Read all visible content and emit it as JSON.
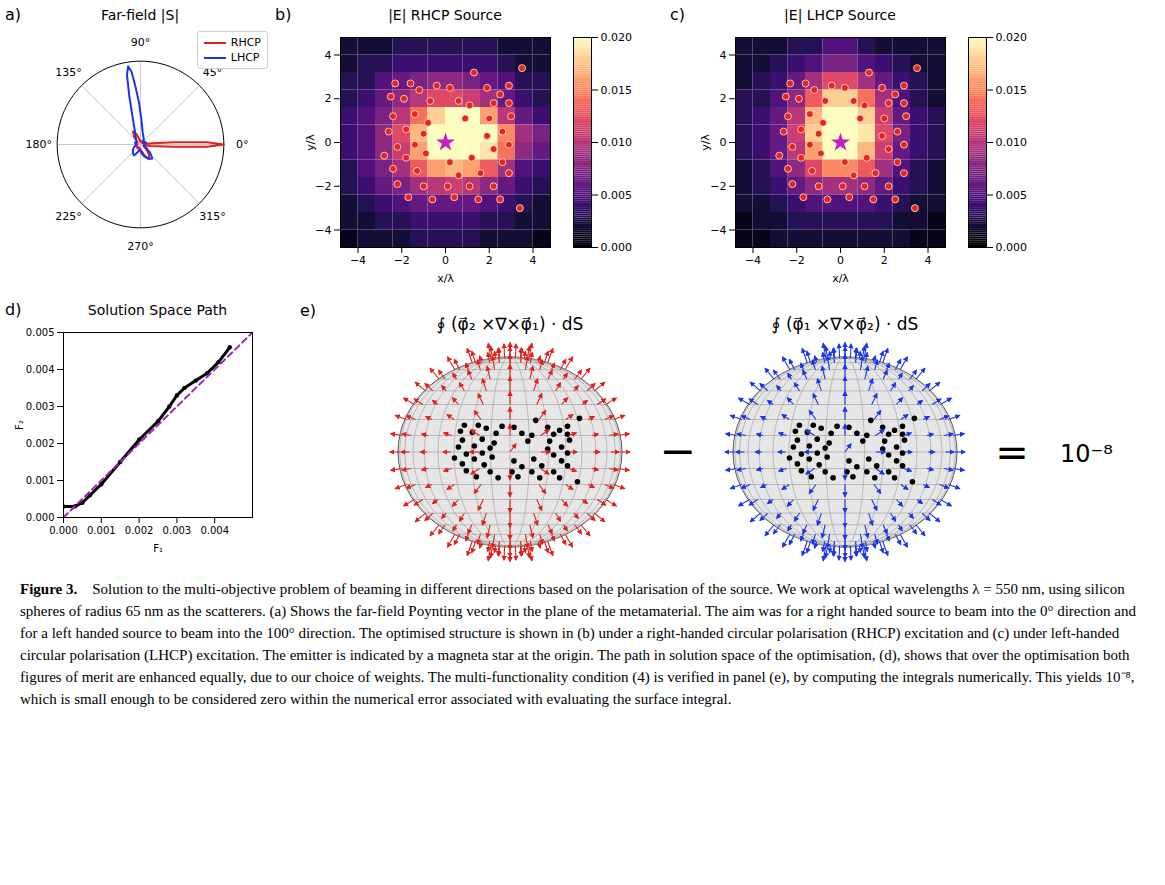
{
  "chart_data": [
    {
      "type": "polar",
      "panel_label": "a)",
      "title": "Far-field |S|",
      "x": [
        0,
        2,
        4,
        6,
        8,
        12,
        20,
        30,
        40,
        50,
        60,
        70,
        80,
        88,
        92,
        95,
        97,
        99,
        101,
        103,
        106,
        110,
        115,
        120,
        130,
        140,
        150,
        160,
        170,
        180,
        190,
        200,
        210,
        220,
        230,
        240,
        250,
        260,
        270,
        280,
        290,
        300,
        310,
        320,
        330,
        340,
        348,
        352,
        354,
        356,
        358
      ],
      "series": [
        {
          "name": "RHCP",
          "color": "#e0201b",
          "values": [
            1.0,
            0.8,
            0.4,
            0.15,
            0.06,
            0.04,
            0.05,
            0.03,
            0.05,
            0.06,
            0.04,
            0.03,
            0.04,
            0.05,
            0.05,
            0.04,
            0.04,
            0.04,
            0.05,
            0.06,
            0.08,
            0.12,
            0.16,
            0.18,
            0.12,
            0.06,
            0.04,
            0.05,
            0.06,
            0.05,
            0.04,
            0.06,
            0.05,
            0.04,
            0.06,
            0.05,
            0.04,
            0.05,
            0.06,
            0.08,
            0.14,
            0.2,
            0.16,
            0.09,
            0.05,
            0.04,
            0.05,
            0.12,
            0.2,
            0.4,
            0.8
          ]
        },
        {
          "name": "LHCP",
          "color": "#1a35e8",
          "values": [
            0.04,
            0.05,
            0.05,
            0.04,
            0.04,
            0.05,
            0.07,
            0.06,
            0.04,
            0.05,
            0.08,
            0.1,
            0.15,
            0.3,
            0.5,
            0.7,
            0.88,
            0.95,
            0.85,
            0.6,
            0.35,
            0.22,
            0.15,
            0.12,
            0.08,
            0.06,
            0.05,
            0.07,
            0.06,
            0.05,
            0.06,
            0.08,
            0.1,
            0.12,
            0.14,
            0.15,
            0.1,
            0.06,
            0.08,
            0.12,
            0.16,
            0.2,
            0.22,
            0.15,
            0.08,
            0.05,
            0.04,
            0.04,
            0.04,
            0.04,
            0.04
          ]
        }
      ],
      "xticks": [
        {
          "value": 0,
          "label": "0°"
        },
        {
          "value": 45,
          "label": "45°"
        },
        {
          "value": 90,
          "label": "90°"
        },
        {
          "value": 135,
          "label": "135°"
        },
        {
          "value": 180,
          "label": "180°"
        },
        {
          "value": 225,
          "label": "225°"
        },
        {
          "value": 270,
          "label": "270°"
        },
        {
          "value": 315,
          "label": "315°"
        }
      ],
      "ylim": [
        0,
        1
      ],
      "tick_labels": "x",
      "grid": true,
      "legend": "upper right"
    },
    {
      "type": "heatmap",
      "panel_label": "b)",
      "title": "|E| RHCP Source",
      "x_label": "x/λ",
      "y_label": "y/λ",
      "xlim": [
        -4.8,
        4.8
      ],
      "ylim": [
        -4.8,
        4.8
      ],
      "xticks": [
        -4,
        -2,
        0,
        2,
        4
      ],
      "yticks": [
        -4,
        -2,
        0,
        2,
        4
      ],
      "cells": {
        "x": [
          -4.4,
          -3.6,
          -2.8,
          -2.0,
          -1.2,
          -0.4,
          0.4,
          1.2,
          2.0,
          2.8,
          3.6,
          4.4
        ],
        "y": [
          4.4,
          3.6,
          2.8,
          2.0,
          1.2,
          0.4,
          -0.4,
          -1.2,
          -2.0,
          -2.8,
          -3.6,
          -4.4
        ],
        "values": [
          [
            0.002,
            0.002,
            0.002,
            0.003,
            0.003,
            0.003,
            0.003,
            0.003,
            0.003,
            0.002,
            0.002,
            0.002
          ],
          [
            0.002,
            0.003,
            0.003,
            0.004,
            0.004,
            0.004,
            0.004,
            0.004,
            0.004,
            0.003,
            0.002,
            0.002
          ],
          [
            0.003,
            0.003,
            0.005,
            0.006,
            0.007,
            0.008,
            0.008,
            0.007,
            0.006,
            0.005,
            0.003,
            0.003
          ],
          [
            0.003,
            0.004,
            0.006,
            0.008,
            0.01,
            0.012,
            0.012,
            0.011,
            0.009,
            0.006,
            0.004,
            0.003
          ],
          [
            0.004,
            0.005,
            0.007,
            0.01,
            0.014,
            0.018,
            0.02,
            0.02,
            0.016,
            0.01,
            0.006,
            0.004
          ],
          [
            0.004,
            0.005,
            0.008,
            0.012,
            0.017,
            0.02,
            0.02,
            0.02,
            0.02,
            0.015,
            0.009,
            0.007
          ],
          [
            0.004,
            0.005,
            0.008,
            0.011,
            0.016,
            0.02,
            0.02,
            0.02,
            0.019,
            0.014,
            0.008,
            0.006
          ],
          [
            0.003,
            0.005,
            0.007,
            0.009,
            0.013,
            0.016,
            0.017,
            0.016,
            0.013,
            0.009,
            0.005,
            0.004
          ],
          [
            0.003,
            0.004,
            0.006,
            0.007,
            0.009,
            0.01,
            0.011,
            0.01,
            0.008,
            0.006,
            0.004,
            0.003
          ],
          [
            0.002,
            0.003,
            0.004,
            0.005,
            0.006,
            0.006,
            0.006,
            0.006,
            0.005,
            0.004,
            0.003,
            0.002
          ],
          [
            0.002,
            0.002,
            0.003,
            0.003,
            0.004,
            0.004,
            0.004,
            0.004,
            0.003,
            0.003,
            0.002,
            0.002
          ],
          [
            0.001,
            0.002,
            0.002,
            0.002,
            0.003,
            0.003,
            0.003,
            0.003,
            0.002,
            0.002,
            0.002,
            0.001
          ]
        ]
      },
      "color": "magma",
      "color_range": [
        0,
        0.02
      ],
      "color_ticks": [
        {
          "value": 0,
          "label": "0.000"
        },
        {
          "value": 0.005,
          "label": "0.005"
        },
        {
          "value": 0.01,
          "label": "0.010"
        },
        {
          "value": 0.015,
          "label": "0.015"
        },
        {
          "value": 0.02,
          "label": "0.020"
        }
      ],
      "points": {
        "color": "#e8241c",
        "x": [
          -2.3,
          -1.6,
          -1.2,
          -0.4,
          0.2,
          1.3,
          1.9,
          2.5,
          2.9,
          3.5,
          -2.5,
          -1.9,
          -0.7,
          0.6,
          1.1,
          2.2,
          2.9,
          -2.4,
          -1.4,
          -0.8,
          0.9,
          2.0,
          3.0,
          -2.6,
          -1.8,
          -1.0,
          2.6,
          -2.2,
          -1.4,
          2.2,
          2.9,
          -2.8,
          -1.8,
          -0.9,
          0.2,
          1.2,
          2.6,
          -2.4,
          -1.3,
          0.6,
          1.6,
          2.9,
          -2.2,
          -1.0,
          0.1,
          1.1,
          2.2,
          -1.7,
          -0.6,
          0.4,
          1.5,
          2.5,
          3.4,
          1.9
        ],
        "y": [
          2.7,
          2.7,
          2.4,
          2.6,
          2.5,
          3.2,
          2.5,
          2.2,
          2.6,
          3.4,
          2.1,
          2.0,
          1.9,
          1.9,
          1.7,
          1.8,
          1.8,
          1.2,
          1.3,
          0.9,
          1.1,
          1.1,
          1.2,
          0.5,
          0.6,
          0.4,
          0.5,
          -0.2,
          -0.1,
          -0.3,
          -0.1,
          -0.6,
          -0.7,
          -0.5,
          -0.9,
          -0.7,
          -0.9,
          -1.2,
          -1.3,
          -1.5,
          -1.4,
          -1.4,
          -1.9,
          -2.0,
          -2.0,
          -2.0,
          -2.0,
          -2.5,
          -2.6,
          -2.5,
          -2.6,
          -2.6,
          -3.0,
          0.3
        ]
      },
      "emitter": {
        "x": 0,
        "y": 0,
        "color": "#c21ec8",
        "marker": "star"
      }
    },
    {
      "type": "heatmap",
      "panel_label": "c)",
      "title": "|E| LHCP Source",
      "x_label": "x/λ",
      "y_label": "y/λ",
      "xlim": [
        -4.8,
        4.8
      ],
      "ylim": [
        -4.8,
        4.8
      ],
      "xticks": [
        -4,
        -2,
        0,
        2,
        4
      ],
      "yticks": [
        -4,
        -2,
        0,
        2,
        4
      ],
      "cells": {
        "x": [
          -4.4,
          -3.6,
          -2.8,
          -2.0,
          -1.2,
          -0.4,
          0.4,
          1.2,
          2.0,
          2.8,
          3.6,
          4.4
        ],
        "y": [
          4.4,
          3.6,
          2.8,
          2.0,
          1.2,
          0.4,
          -0.4,
          -1.2,
          -2.0,
          -2.8,
          -3.6,
          -4.4
        ],
        "values": [
          [
            0.002,
            0.002,
            0.002,
            0.003,
            0.003,
            0.005,
            0.005,
            0.003,
            0.002,
            0.002,
            0.002,
            0.002
          ],
          [
            0.002,
            0.002,
            0.003,
            0.004,
            0.005,
            0.007,
            0.007,
            0.005,
            0.004,
            0.003,
            0.002,
            0.002
          ],
          [
            0.002,
            0.003,
            0.004,
            0.006,
            0.009,
            0.012,
            0.012,
            0.009,
            0.006,
            0.004,
            0.003,
            0.002
          ],
          [
            0.003,
            0.003,
            0.005,
            0.008,
            0.013,
            0.018,
            0.018,
            0.014,
            0.009,
            0.005,
            0.003,
            0.002
          ],
          [
            0.003,
            0.004,
            0.006,
            0.01,
            0.017,
            0.02,
            0.02,
            0.018,
            0.011,
            0.006,
            0.004,
            0.003
          ],
          [
            0.003,
            0.004,
            0.006,
            0.011,
            0.018,
            0.02,
            0.02,
            0.019,
            0.012,
            0.007,
            0.004,
            0.003
          ],
          [
            0.003,
            0.004,
            0.006,
            0.01,
            0.016,
            0.02,
            0.02,
            0.017,
            0.011,
            0.006,
            0.004,
            0.003
          ],
          [
            0.002,
            0.003,
            0.005,
            0.008,
            0.012,
            0.015,
            0.015,
            0.013,
            0.009,
            0.005,
            0.003,
            0.002
          ],
          [
            0.002,
            0.003,
            0.004,
            0.006,
            0.008,
            0.009,
            0.009,
            0.008,
            0.006,
            0.004,
            0.003,
            0.002
          ],
          [
            0.002,
            0.002,
            0.003,
            0.004,
            0.005,
            0.005,
            0.005,
            0.005,
            0.004,
            0.003,
            0.002,
            0.002
          ],
          [
            0.001,
            0.002,
            0.002,
            0.003,
            0.003,
            0.003,
            0.003,
            0.003,
            0.003,
            0.002,
            0.002,
            0.001
          ],
          [
            0.001,
            0.001,
            0.002,
            0.002,
            0.002,
            0.002,
            0.002,
            0.002,
            0.002,
            0.002,
            0.001,
            0.001
          ]
        ]
      },
      "color": "magma",
      "color_range": [
        0,
        0.02
      ],
      "color_ticks": [
        {
          "value": 0,
          "label": "0.000"
        },
        {
          "value": 0.005,
          "label": "0.005"
        },
        {
          "value": 0.01,
          "label": "0.010"
        },
        {
          "value": 0.015,
          "label": "0.015"
        },
        {
          "value": 0.02,
          "label": "0.020"
        }
      ],
      "points": {
        "color": "#e8241c",
        "x": [
          -2.3,
          -1.6,
          -1.2,
          -0.4,
          0.2,
          1.3,
          1.9,
          2.5,
          2.9,
          3.5,
          -2.5,
          -1.9,
          -0.7,
          0.6,
          1.1,
          2.2,
          2.9,
          -2.4,
          -1.4,
          -0.8,
          0.9,
          2.0,
          3.0,
          -2.6,
          -1.8,
          -1.0,
          2.6,
          -2.2,
          -1.4,
          2.2,
          2.9,
          -2.8,
          -1.8,
          -0.9,
          0.2,
          1.2,
          2.6,
          -2.4,
          -1.3,
          0.6,
          1.6,
          2.9,
          -2.2,
          -1.0,
          0.1,
          1.1,
          2.2,
          -1.7,
          -0.6,
          0.4,
          1.5,
          2.5,
          3.4,
          1.9
        ],
        "y": [
          2.7,
          2.7,
          2.4,
          2.6,
          2.5,
          3.2,
          2.5,
          2.2,
          2.6,
          3.4,
          2.1,
          2.0,
          1.9,
          1.9,
          1.7,
          1.8,
          1.8,
          1.2,
          1.3,
          0.9,
          1.1,
          1.1,
          1.2,
          0.5,
          0.6,
          0.4,
          0.5,
          -0.2,
          -0.1,
          -0.3,
          -0.1,
          -0.6,
          -0.7,
          -0.5,
          -0.9,
          -0.7,
          -0.9,
          -1.2,
          -1.3,
          -1.5,
          -1.4,
          -1.4,
          -1.9,
          -2.0,
          -2.0,
          -2.0,
          -2.0,
          -2.5,
          -2.6,
          -2.5,
          -2.6,
          -2.6,
          -3.0,
          0.3
        ]
      },
      "emitter": {
        "x": 0,
        "y": 0,
        "color": "#c21ec8",
        "marker": "star"
      }
    },
    {
      "type": "line",
      "panel_label": "d)",
      "title": "Solution Space Path",
      "x_label": "F₁",
      "y_label": "F₂",
      "xlim": [
        0,
        0.005
      ],
      "ylim": [
        0,
        0.005
      ],
      "xticks": [
        {
          "value": 0,
          "label": "0.000"
        },
        {
          "value": 0.001,
          "label": "0.001"
        },
        {
          "value": 0.002,
          "label": "0.002"
        },
        {
          "value": 0.003,
          "label": "0.003"
        },
        {
          "value": 0.004,
          "label": "0.004"
        }
      ],
      "yticks": [
        {
          "value": 0,
          "label": "0.000"
        },
        {
          "value": 0.001,
          "label": "0.001"
        },
        {
          "value": 0.002,
          "label": "0.002"
        },
        {
          "value": 0.003,
          "label": "0.003"
        },
        {
          "value": 0.004,
          "label": "0.004"
        },
        {
          "value": 0.005,
          "label": "0.005"
        }
      ],
      "series": [
        {
          "color": "#000000",
          "marker": "circle",
          "line_style": "solid",
          "x": [
            0,
            0.0003,
            0.0005,
            0.0007,
            0.001,
            0.0015,
            0.002,
            0.0025,
            0.0028,
            0.003,
            0.0032,
            0.0035,
            0.0038,
            0.0041,
            0.0044
          ],
          "values": [
            0.0003,
            0.0003,
            0.0004,
            0.0006,
            0.0009,
            0.0015,
            0.0021,
            0.0026,
            0.003,
            0.0033,
            0.0035,
            0.0037,
            0.0039,
            0.0042,
            0.0046
          ]
        },
        {
          "color": "#a020c0",
          "line_style": "dashed",
          "x": [
            0,
            0.005
          ],
          "values": [
            0,
            0.005
          ]
        }
      ]
    }
  ],
  "diagram": {
    "panel_label": "e)",
    "left": {
      "label": "∮ (φ⃗₂ ×∇×φ⃗₁) · dS",
      "color": "#e0201b"
    },
    "operator": "−",
    "right": {
      "label": "∮ (φ⃗₁ ×∇×φ⃗₂) · dS",
      "color": "#1a35e8"
    },
    "equals": "=",
    "result": "10⁻⁸"
  },
  "caption": {
    "label": "Figure 3.",
    "text": "Solution to the multi-objective problem of beaming in different directions based on the polarisation of the source. We work at optical wavelengths λ = 550 nm, using silicon spheres of radius 65 nm as the scatterers. (a) Shows the far-field Poynting vector in the plane of the metamaterial. The aim was for a right handed source to beam into the 0° direction and for a left handed source to beam into the 100° direction. The optimised structure is shown in (b) under a right-handed circular polarisation (RHCP) excitation and (c) under left-handed circular polarisation (LHCP) excitation. The emitter is indicated by a magneta star at the origin. The path in solution space of the optimisation, (d), shows that over the optimisation both figures of merit are enhanced equally, due to our choice of weights. The multi-functionality condition (4) is verified in panel (e), by computing the integrals numerically. This yields 10⁻⁸, which is small enough to be considered zero within the numerical error associated with evaluating the surface integral."
  }
}
